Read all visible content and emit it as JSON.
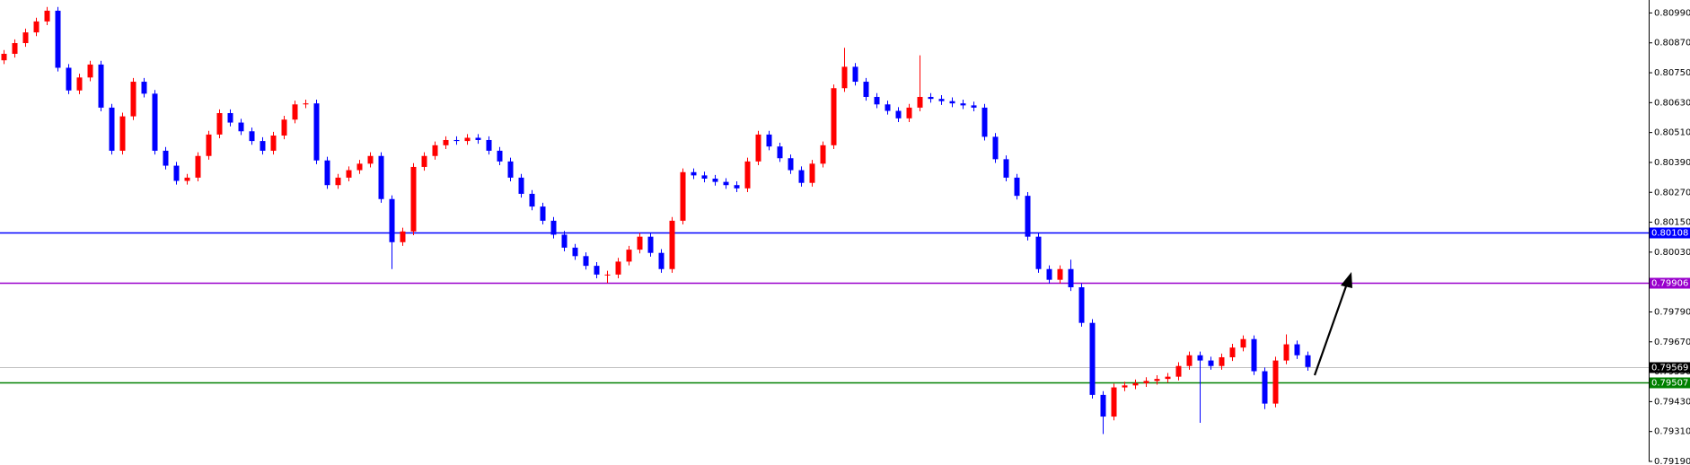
{
  "chart_data": {
    "type": "candlestick",
    "up_color": "#ff0000",
    "down_color": "#0000ff",
    "ylim": [
      0.7919,
      0.81042
    ],
    "yticks": [
      {
        "value": 0.8099,
        "label": "0.80990"
      },
      {
        "value": 0.8087,
        "label": "0.80870"
      },
      {
        "value": 0.8075,
        "label": "0.80750"
      },
      {
        "value": 0.8063,
        "label": "0.80630"
      },
      {
        "value": 0.8051,
        "label": "0.80510"
      },
      {
        "value": 0.8039,
        "label": "0.80390"
      },
      {
        "value": 0.8027,
        "label": "0.80270"
      },
      {
        "value": 0.8015,
        "label": "0.80150"
      },
      {
        "value": 0.8003,
        "label": "0.80030"
      },
      {
        "value": 0.7991,
        "label": "0.79910"
      },
      {
        "value": 0.7979,
        "label": "0.79790"
      },
      {
        "value": 0.7967,
        "label": "0.79670"
      },
      {
        "value": 0.7955,
        "label": "0.79550"
      },
      {
        "value": 0.7943,
        "label": "0.79430"
      },
      {
        "value": 0.7931,
        "label": "0.79310"
      },
      {
        "value": 0.7919,
        "label": "0.79190"
      }
    ],
    "levels": [
      {
        "value": 0.80108,
        "color": "#0000ff"
      },
      {
        "value": 0.79906,
        "color": "#9900cc"
      },
      {
        "value": 0.79569,
        "color": "#c0c0c0",
        "tag_color": "#000000"
      },
      {
        "value": 0.79507,
        "color": "#008000"
      }
    ],
    "open": [
      0.808,
      0.80826,
      0.80869,
      0.80912,
      0.80956,
      0.80999,
      0.8077,
      0.80679,
      0.80731,
      0.80783,
      0.8061,
      0.80437,
      0.80575,
      0.80714,
      0.80666,
      0.80437,
      0.80377,
      0.80316,
      0.80329,
      0.80416,
      0.80502,
      0.80588,
      0.8055,
      0.80515,
      0.80476,
      0.80437,
      0.80498,
      0.80562,
      0.80623,
      0.80627,
      0.80398,
      0.80299,
      0.80329,
      0.80359,
      0.80385,
      0.80416,
      0.80243,
      0.8007,
      0.80113,
      0.80372,
      0.80416,
      0.80459,
      0.8048,
      0.80476,
      0.80489,
      0.8048,
      0.80437,
      0.80394,
      0.80329,
      0.80264,
      0.80213,
      0.80156,
      0.801,
      0.80048,
      0.80014,
      0.79975,
      0.7994,
      0.7994,
      0.79992,
      0.8004,
      0.80092,
      0.80027,
      0.79962,
      0.80156,
      0.80351,
      0.80338,
      0.80325,
      0.80312,
      0.80299,
      0.80286,
      0.80394,
      0.80502,
      0.80454,
      0.80407,
      0.80359,
      0.80308,
      0.80385,
      0.80459,
      0.80688,
      0.80774,
      0.80714,
      0.80653,
      0.80623,
      0.80597,
      0.80567,
      0.8061,
      0.80653,
      0.80645,
      0.80636,
      0.80627,
      0.80619,
      0.8061,
      0.80493,
      0.80403,
      0.80329,
      0.80256,
      0.80092,
      0.79962,
      0.79919,
      0.79962,
      0.79889,
      0.79746,
      0.79457,
      0.7937,
      0.79487,
      0.79495,
      0.79504,
      0.79513,
      0.79521,
      0.7953,
      0.79573,
      0.79616,
      0.79595,
      0.79573,
      0.79608,
      0.79647,
      0.79681,
      0.79552,
      0.79422,
      0.79595,
      0.7966,
      0.79616
    ],
    "high": [
      0.80841,
      0.80884,
      0.80927,
      0.80971,
      0.81014,
      0.81014,
      0.80785,
      0.80746,
      0.80798,
      0.80798,
      0.80625,
      0.8059,
      0.80729,
      0.80729,
      0.80681,
      0.80452,
      0.80392,
      0.80344,
      0.80431,
      0.80517,
      0.80603,
      0.80603,
      0.80565,
      0.8053,
      0.80491,
      0.80513,
      0.80577,
      0.80638,
      0.80642,
      0.80642,
      0.80413,
      0.80344,
      0.80374,
      0.804,
      0.80431,
      0.80431,
      0.80258,
      0.80128,
      0.80387,
      0.80431,
      0.80474,
      0.80495,
      0.80495,
      0.80504,
      0.80504,
      0.80495,
      0.80452,
      0.80409,
      0.80344,
      0.80279,
      0.80228,
      0.80171,
      0.80115,
      0.80063,
      0.80029,
      0.7999,
      0.79955,
      0.80007,
      0.80055,
      0.80107,
      0.80107,
      0.80042,
      0.80171,
      0.80366,
      0.80366,
      0.80353,
      0.8034,
      0.80327,
      0.80314,
      0.80409,
      0.80517,
      0.80517,
      0.80469,
      0.80422,
      0.80374,
      0.804,
      0.80474,
      0.80703,
      0.8085,
      0.80789,
      0.80729,
      0.80668,
      0.80638,
      0.80612,
      0.80625,
      0.8082,
      0.80668,
      0.8066,
      0.80651,
      0.80642,
      0.80634,
      0.80625,
      0.80508,
      0.80418,
      0.80344,
      0.80271,
      0.80107,
      0.79977,
      0.79977,
      0.8,
      0.79904,
      0.79761,
      0.79472,
      0.79502,
      0.7951,
      0.79519,
      0.79528,
      0.79536,
      0.79545,
      0.79588,
      0.79631,
      0.79631,
      0.7961,
      0.79623,
      0.79662,
      0.79696,
      0.79696,
      0.79567,
      0.7961,
      0.797,
      0.79675,
      0.79631
    ],
    "low": [
      0.80785,
      0.80811,
      0.80854,
      0.80897,
      0.80941,
      0.80755,
      0.80664,
      0.80664,
      0.80716,
      0.80595,
      0.80422,
      0.80422,
      0.8056,
      0.80651,
      0.80422,
      0.80362,
      0.80301,
      0.80301,
      0.80314,
      0.80401,
      0.80487,
      0.80535,
      0.805,
      0.80461,
      0.80422,
      0.80422,
      0.80483,
      0.80547,
      0.80608,
      0.80383,
      0.80284,
      0.80284,
      0.80314,
      0.80344,
      0.8037,
      0.80228,
      0.79962,
      0.80055,
      0.80098,
      0.80357,
      0.80401,
      0.80444,
      0.80461,
      0.80461,
      0.80465,
      0.80422,
      0.80379,
      0.80314,
      0.80249,
      0.80198,
      0.80141,
      0.80085,
      0.80033,
      0.79999,
      0.7996,
      0.79925,
      0.79906,
      0.79925,
      0.79977,
      0.80025,
      0.80012,
      0.79947,
      0.79947,
      0.80141,
      0.80323,
      0.8031,
      0.80297,
      0.80284,
      0.80271,
      0.80271,
      0.80379,
      0.80439,
      0.80392,
      0.80344,
      0.80293,
      0.80293,
      0.8037,
      0.80444,
      0.80673,
      0.80699,
      0.80638,
      0.80608,
      0.80582,
      0.80552,
      0.80552,
      0.80595,
      0.8063,
      0.80621,
      0.80612,
      0.80604,
      0.80595,
      0.80478,
      0.80388,
      0.80314,
      0.80241,
      0.80077,
      0.79947,
      0.79904,
      0.79904,
      0.79874,
      0.79731,
      0.79442,
      0.793,
      0.79355,
      0.79472,
      0.7948,
      0.79489,
      0.79498,
      0.79506,
      0.79515,
      0.79558,
      0.79345,
      0.79558,
      0.79558,
      0.79593,
      0.79632,
      0.79537,
      0.794,
      0.79407,
      0.7958,
      0.79601,
      0.79554
    ],
    "close": [
      0.80826,
      0.80869,
      0.80912,
      0.80956,
      0.80999,
      0.8077,
      0.80679,
      0.80731,
      0.80783,
      0.8061,
      0.80437,
      0.80575,
      0.80714,
      0.80666,
      0.80437,
      0.80377,
      0.80316,
      0.80329,
      0.80416,
      0.80502,
      0.80588,
      0.8055,
      0.80515,
      0.80476,
      0.80437,
      0.80498,
      0.80562,
      0.80623,
      0.80627,
      0.80398,
      0.80299,
      0.80329,
      0.80359,
      0.80385,
      0.80416,
      0.80243,
      0.8007,
      0.80113,
      0.80372,
      0.80416,
      0.80459,
      0.8048,
      0.80476,
      0.80489,
      0.8048,
      0.80437,
      0.80394,
      0.80329,
      0.80264,
      0.80213,
      0.80156,
      0.801,
      0.80048,
      0.80014,
      0.79975,
      0.7994,
      0.7994,
      0.79992,
      0.8004,
      0.80092,
      0.80027,
      0.79962,
      0.80156,
      0.80351,
      0.80338,
      0.80325,
      0.80312,
      0.80299,
      0.80286,
      0.80394,
      0.80502,
      0.80454,
      0.80407,
      0.80359,
      0.80308,
      0.80385,
      0.80459,
      0.80688,
      0.80774,
      0.80714,
      0.80653,
      0.80623,
      0.80597,
      0.80567,
      0.8061,
      0.80653,
      0.80645,
      0.80636,
      0.80627,
      0.80619,
      0.8061,
      0.80493,
      0.80403,
      0.80329,
      0.80256,
      0.80092,
      0.79962,
      0.79919,
      0.79962,
      0.79889,
      0.79746,
      0.79457,
      0.7937,
      0.79487,
      0.79495,
      0.79504,
      0.79513,
      0.79521,
      0.7953,
      0.79573,
      0.79616,
      0.79595,
      0.79573,
      0.79608,
      0.79647,
      0.79681,
      0.79552,
      0.79422,
      0.79595,
      0.7966,
      0.79616,
      0.79569
    ]
  }
}
